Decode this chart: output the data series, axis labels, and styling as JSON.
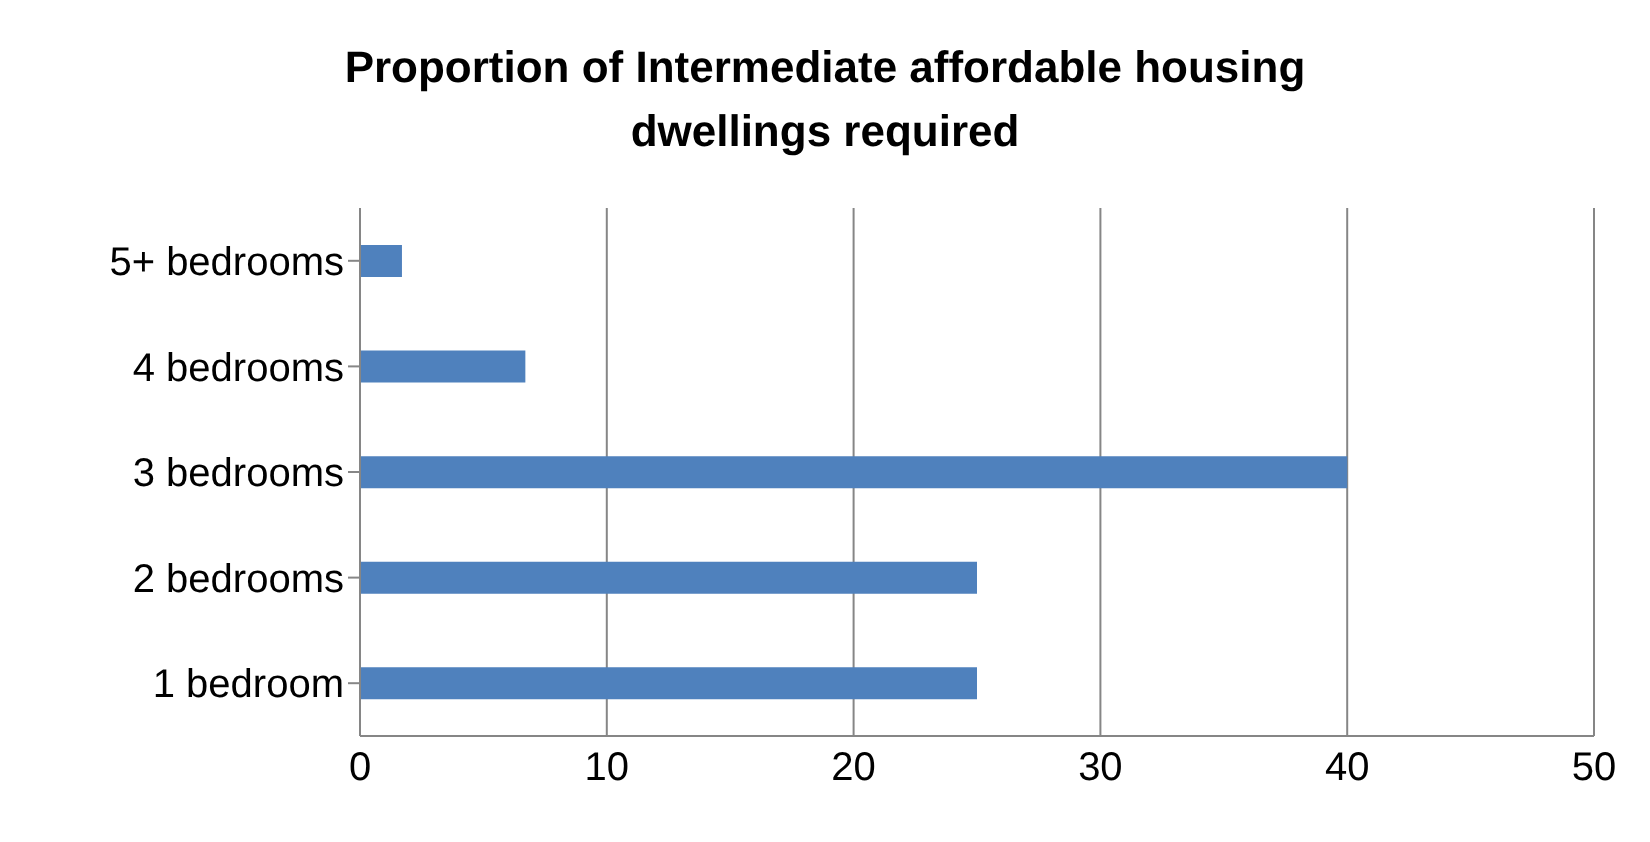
{
  "chart_data": {
    "type": "bar",
    "orientation": "horizontal",
    "title": "Proportion of Intermediate affordable housing dwellings required",
    "categories": [
      "5+ bedrooms",
      "4 bedrooms",
      "3 bedrooms",
      "2 bedrooms",
      "1 bedroom"
    ],
    "values": [
      1.7,
      6.7,
      40,
      25,
      25
    ],
    "color": "#4f81bd",
    "xlim": [
      0,
      50
    ],
    "xticks": [
      0,
      10,
      20,
      30,
      40,
      50
    ],
    "grid": "x"
  }
}
